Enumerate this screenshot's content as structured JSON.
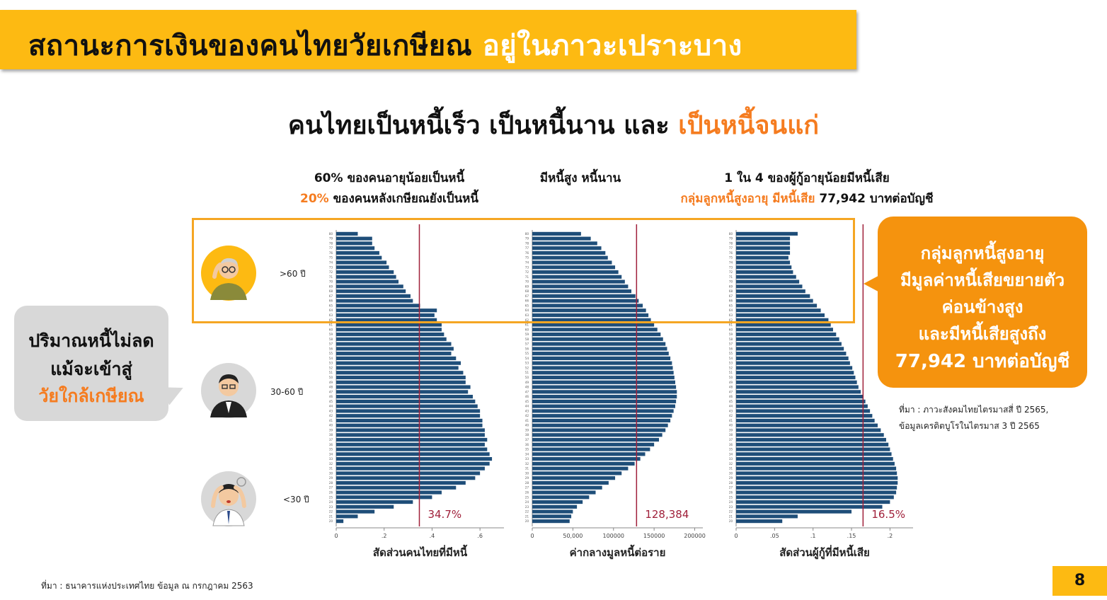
{
  "title": {
    "main": "สถานะการเงินของคนไทยวัยเกษียณ",
    "highlight": "อยู่ในภาวะเปราะบาง"
  },
  "subtitle": {
    "main": "คนไทยเป็นหนี้เร็ว เป็นหนี้นาน และ",
    "highlight": "เป็นหนี้จนแก่"
  },
  "headers": {
    "left": {
      "line1": "60% ของคนอายุน้อยเป็นหนี้",
      "line2_highlight": "20%",
      "line2_rest": "ของคนหลังเกษียณยังเป็นหนี้"
    },
    "middle": {
      "line1": "มีหนี้สูง หนี้นาน"
    },
    "right": {
      "line1": "1 ใน 4 ของผู้กู้อายุน้อยมีหนี้เสีย",
      "line2_highlight": "กลุ่มลูกหนี้สูงอายุ มีหนี้เสีย",
      "line2_rest": "77,942 บาทต่อบัญชี"
    }
  },
  "age_groups": [
    {
      "label": ">60 ปี",
      "icon": "elderly-person-icon"
    },
    {
      "label": "30-60 ปี",
      "icon": "middle-aged-person-icon"
    },
    {
      "label": "<30 ปี",
      "icon": "stressed-young-person-icon"
    }
  ],
  "left_callout": {
    "line1": "ปริมาณหนี้ไม่ลด",
    "line2": "แม้จะเข้าสู่",
    "line3": "วัยใกล้เกษียณ"
  },
  "right_callout": {
    "line1": "กลุ่มลูกหนี้สูงอายุ",
    "line2": "มีมูลค่าหนี้เสียขยายตัว",
    "line3": "ค่อนข้างสูง",
    "line4": "และมีหนี้เสียสูงถึง",
    "line5": "77,942 บาทต่อบัญชี"
  },
  "source_note": {
    "line1": "ที่มา : ภาวะสังคมไทยไตรมาสสี่ ปี 2565,",
    "line2": "ข้อมูลเครดิตบูโรในไตรมาส 3 ปี 2565"
  },
  "footer": "ที่มา : ธนาคารแห่งประเทศไทย ข้อมูล ณ กรกฎาคม 2563",
  "page_number": "8",
  "colors": {
    "bar": "#1F4E79",
    "reference_line": "#A0203A",
    "accent": "#F57C20",
    "highlight_box": "#F5A623",
    "title_bg": "#FDBA12"
  },
  "chart_data": [
    {
      "type": "bar",
      "orientation": "horizontal",
      "xlabel": "สัดส่วนคนไทยที่มีหนี้",
      "xticks": [
        "0",
        ".2",
        ".4",
        ".6"
      ],
      "xlim": [
        0,
        0.7
      ],
      "ages_from": 80,
      "ages_to": 20,
      "values": [
        0.09,
        0.15,
        0.15,
        0.16,
        0.18,
        0.19,
        0.21,
        0.22,
        0.24,
        0.25,
        0.26,
        0.28,
        0.29,
        0.31,
        0.32,
        0.35,
        0.42,
        0.41,
        0.42,
        0.44,
        0.44,
        0.45,
        0.46,
        0.48,
        0.49,
        0.48,
        0.5,
        0.52,
        0.51,
        0.53,
        0.54,
        0.54,
        0.56,
        0.55,
        0.57,
        0.58,
        0.59,
        0.6,
        0.6,
        0.61,
        0.61,
        0.62,
        0.62,
        0.63,
        0.62,
        0.63,
        0.64,
        0.65,
        0.64,
        0.62,
        0.6,
        0.58,
        0.54,
        0.5,
        0.44,
        0.4,
        0.32,
        0.24,
        0.16,
        0.09,
        0.03
      ],
      "reference_value": 0.347,
      "reference_label": "34.7%"
    },
    {
      "type": "bar",
      "orientation": "horizontal",
      "xlabel": "ค่ากลางมูลหนี้ต่อราย",
      "xticks": [
        "0",
        "50,000",
        "100000",
        "150000",
        "200000"
      ],
      "xlim": [
        0,
        210000
      ],
      "ages_from": 80,
      "ages_to": 20,
      "values": [
        60000,
        72000,
        80000,
        85000,
        90000,
        93000,
        98000,
        102000,
        106000,
        110000,
        114000,
        118000,
        122000,
        127000,
        131000,
        136000,
        140000,
        143000,
        146000,
        150000,
        154000,
        158000,
        161000,
        164000,
        166000,
        168000,
        170000,
        172000,
        173000,
        174000,
        175000,
        176000,
        177000,
        178000,
        178000,
        177000,
        176000,
        174000,
        172000,
        170000,
        167000,
        164000,
        160000,
        156000,
        150000,
        145000,
        139000,
        133000,
        126000,
        118000,
        110000,
        102000,
        94000,
        86000,
        78000,
        70000,
        62000,
        55000,
        50000,
        48000,
        46000
      ],
      "reference_value": 128384,
      "reference_label": "128,384"
    },
    {
      "type": "bar",
      "orientation": "horizontal",
      "xlabel": "สัดส่วนผู้กู้ที่มีหนี้เสีย",
      "xticks": [
        "0",
        ".05",
        ".1",
        ".15",
        ".2"
      ],
      "xlim": [
        0,
        0.23
      ],
      "ages_from": 80,
      "ages_to": 20,
      "values": [
        0.08,
        0.07,
        0.07,
        0.07,
        0.07,
        0.068,
        0.07,
        0.072,
        0.074,
        0.078,
        0.082,
        0.086,
        0.09,
        0.096,
        0.1,
        0.105,
        0.11,
        0.115,
        0.12,
        0.123,
        0.126,
        0.13,
        0.134,
        0.137,
        0.14,
        0.143,
        0.146,
        0.148,
        0.151,
        0.153,
        0.155,
        0.157,
        0.159,
        0.162,
        0.165,
        0.168,
        0.171,
        0.174,
        0.177,
        0.18,
        0.184,
        0.188,
        0.192,
        0.195,
        0.198,
        0.2,
        0.202,
        0.204,
        0.206,
        0.208,
        0.209,
        0.21,
        0.21,
        0.209,
        0.208,
        0.205,
        0.2,
        0.19,
        0.15,
        0.08,
        0.06
      ],
      "reference_value": 0.165,
      "reference_label": "16.5%"
    }
  ]
}
